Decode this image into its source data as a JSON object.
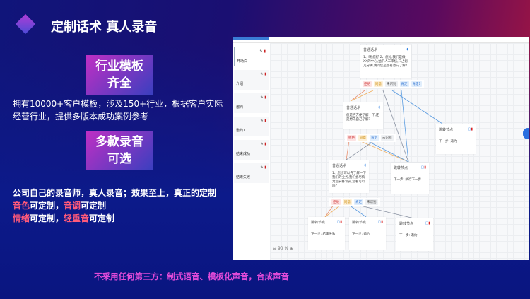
{
  "title": "定制话术  真人录音",
  "badge1": {
    "line1": "行业模板",
    "line2": "齐全"
  },
  "desc1": {
    "line1": "拥有10000+客户模板，涉及150+行业，根据客户实际",
    "line2": "经营行业，提供多版本成功案例参考"
  },
  "badge2": {
    "line1": "多款录音",
    "line2": "可选"
  },
  "desc2": {
    "line1": "公司自己的录音师，真人录音；效果至上，真正的定制",
    "line2a": "音色",
    "line2b": "可定制，",
    "line2c": "音调",
    "line2d": "可定制",
    "line3a": "情绪",
    "line3b": "可定制，",
    "line3c": "轻重音",
    "line3d": "可定制"
  },
  "footer": "不采用任何第三方：制式语音、模板化声音，合成声音",
  "screenshot": {
    "sidebar": [
      {
        "label": "开场白"
      },
      {
        "label": "介绍"
      },
      {
        "label": "邀约"
      },
      {
        "label": "邀约1"
      },
      {
        "label": "结束成功"
      },
      {
        "label": "结束失败"
      }
    ],
    "nodes": {
      "a": {
        "title": "普通话术",
        "text": "1、喂,您好 2、您好,我们是做XX的中心,抽下人工审核,只占您几分钟,请问您是否有意向了解?"
      },
      "b": {
        "title": "普通话术",
        "text": "您是否方便了解一下,还是想先自己了解?"
      },
      "e": {
        "title": "普通话术",
        "text": "1、您也可以先了解一下我们的业务,我们会尽快为您安排专员,您看可以吗?"
      },
      "j1": {
        "title": "跳转节点",
        "next": "下一步: 邀约"
      },
      "j2": {
        "title": "跳转节点",
        "next": "下一步: 执行下一步"
      },
      "j3": {
        "title": "跳转节点",
        "next": "下一步: 结束失败"
      },
      "j4": {
        "title": "跳转节点",
        "next": "下一步: 邀约"
      },
      "j5": {
        "title": "跳转节点",
        "next": "下一步: 邀约"
      }
    },
    "tags": {
      "reject": "拒绝",
      "agree": "同意",
      "unknown": "未识别",
      "yes": "肯定",
      "yes1": "肯定1"
    },
    "zoom": "90 %"
  },
  "colors": {
    "accent": "#3a7bd5",
    "footer": "#e04ad8",
    "highlight": "#ff5a7a"
  }
}
